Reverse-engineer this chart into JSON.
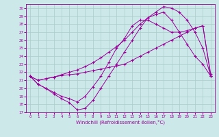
{
  "xlabel": "Windchill (Refroidissement éolien,°C)",
  "bg_color": "#cce8e8",
  "line_color": "#990099",
  "grid_color": "#aacccc",
  "xlim": [
    -0.5,
    23.5
  ],
  "ylim": [
    17,
    30.5
  ],
  "yticks": [
    17,
    18,
    19,
    20,
    21,
    22,
    23,
    24,
    25,
    26,
    27,
    28,
    29,
    30
  ],
  "xticks": [
    0,
    1,
    2,
    3,
    4,
    5,
    6,
    7,
    8,
    9,
    10,
    11,
    12,
    13,
    14,
    15,
    16,
    17,
    18,
    19,
    20,
    21,
    22,
    23
  ],
  "series": [
    {
      "x": [
        0,
        1,
        2,
        3,
        4,
        5,
        6,
        7,
        8,
        9,
        10,
        11,
        12,
        13,
        14,
        15,
        16,
        17,
        18,
        19,
        20,
        21,
        22,
        23
      ],
      "y": [
        21.5,
        21.0,
        21.2,
        21.4,
        21.6,
        21.7,
        21.8,
        22.0,
        22.2,
        22.4,
        22.6,
        22.8,
        23.0,
        23.5,
        24.0,
        24.5,
        25.0,
        25.5,
        26.0,
        26.5,
        27.0,
        27.5,
        27.8,
        21.5
      ]
    },
    {
      "x": [
        0,
        1,
        2,
        3,
        4,
        5,
        6,
        7,
        8,
        9,
        10,
        11,
        12,
        13,
        14,
        15,
        16,
        17,
        18,
        19,
        20,
        21,
        22,
        23
      ],
      "y": [
        21.5,
        21.0,
        21.2,
        21.4,
        21.7,
        22.0,
        22.3,
        22.7,
        23.2,
        23.8,
        24.5,
        25.2,
        26.0,
        27.0,
        28.0,
        28.8,
        29.2,
        29.5,
        28.5,
        27.0,
        25.5,
        24.0,
        23.0,
        21.5
      ]
    },
    {
      "x": [
        0,
        1,
        2,
        3,
        4,
        5,
        6,
        7,
        8,
        9,
        10,
        11,
        12,
        13,
        14,
        15,
        16,
        17,
        18,
        19,
        20,
        21,
        22,
        23
      ],
      "y": [
        21.5,
        20.5,
        20.0,
        19.5,
        19.0,
        18.7,
        18.3,
        19.0,
        20.2,
        21.5,
        23.2,
        25.0,
        26.2,
        27.8,
        28.5,
        28.5,
        28.0,
        27.5,
        27.0,
        27.0,
        27.2,
        27.5,
        27.8,
        21.8
      ]
    },
    {
      "x": [
        0,
        1,
        2,
        3,
        4,
        5,
        6,
        7,
        8,
        9,
        10,
        11,
        12,
        13,
        14,
        15,
        16,
        17,
        18,
        19,
        20,
        21,
        22,
        23
      ],
      "y": [
        21.5,
        20.5,
        20.0,
        19.3,
        18.7,
        18.2,
        17.3,
        17.5,
        18.5,
        20.0,
        21.5,
        23.0,
        24.5,
        26.0,
        27.5,
        28.8,
        29.5,
        30.2,
        30.0,
        29.5,
        28.5,
        27.0,
        25.0,
        21.5
      ]
    }
  ]
}
